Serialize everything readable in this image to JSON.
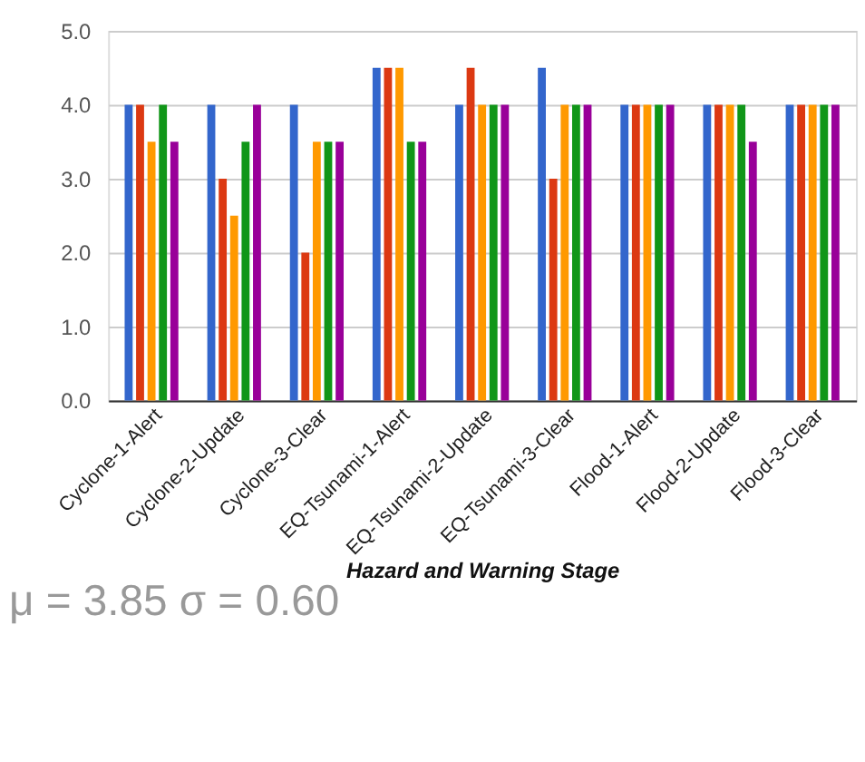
{
  "chart_data": {
    "type": "bar",
    "xlabel": "Hazard and Warning Stage",
    "categories": [
      "Cyclone-1-Alert",
      "Cyclone-2-Update",
      "Cyclone-3-Clear",
      "EQ-Tsunami-1-Alert",
      "EQ-Tsunami-2-Update",
      "EQ-Tsunami-3-Clear",
      "Flood-1-Alert",
      "Flood-2-Update",
      "Flood-3-Clear"
    ],
    "series": [
      {
        "color": "#3366cc",
        "values": [
          4,
          4,
          4,
          4.5,
          4,
          4.5,
          4,
          4,
          4
        ]
      },
      {
        "color": "#dc3912",
        "values": [
          4,
          3,
          2,
          4.5,
          4.5,
          3,
          4,
          4,
          4
        ]
      },
      {
        "color": "#ff9900",
        "values": [
          3.5,
          2.5,
          3.5,
          4.5,
          4,
          4,
          4,
          4,
          4
        ]
      },
      {
        "color": "#109618",
        "values": [
          4,
          3.5,
          3.5,
          3.5,
          4,
          4,
          4,
          4,
          4
        ]
      },
      {
        "color": "#990099",
        "values": [
          3.5,
          4,
          3.5,
          3.5,
          4,
          4,
          4,
          3.5,
          4
        ]
      }
    ],
    "ylim": [
      0,
      5
    ],
    "yticks": [
      {
        "value": 0,
        "label": "0.0"
      },
      {
        "value": 1,
        "label": "1.0"
      },
      {
        "value": 2,
        "label": "2.0"
      },
      {
        "value": 3,
        "label": "3.0"
      },
      {
        "value": 4,
        "label": "4.0"
      },
      {
        "value": 5,
        "label": "5.0"
      }
    ],
    "grid": "y",
    "legend": false,
    "annotations": [
      "μ = 3.85   σ = 0.60"
    ]
  }
}
